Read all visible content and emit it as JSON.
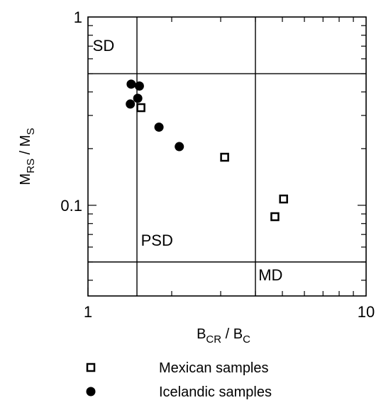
{
  "chart_data": {
    "type": "scatter",
    "x_scale": "log",
    "y_scale": "log",
    "xlim": [
      1,
      10
    ],
    "ylim": [
      0.033,
      1
    ],
    "x_ticks": [
      {
        "value": 1,
        "label": "1"
      },
      {
        "value": 10,
        "label": "10"
      }
    ],
    "y_ticks": [
      {
        "value": 0.1,
        "label": "0.1"
      },
      {
        "value": 1,
        "label": "1"
      }
    ],
    "xlabel": {
      "main": "B",
      "sub1": "CR",
      "mid": " / B",
      "sub2": "C"
    },
    "ylabel": {
      "main": "M",
      "sub1": "RS",
      "mid": " / M",
      "sub2": "S"
    },
    "grid": false,
    "region_lines": {
      "vertical": [
        1.5,
        4.0
      ],
      "horizontal": [
        0.5,
        0.05
      ]
    },
    "region_labels": [
      {
        "text": "SD",
        "x": 1.04,
        "y": 0.66
      },
      {
        "text": "PSD",
        "x": 1.55,
        "y": 0.061
      },
      {
        "text": "MD",
        "x": 4.1,
        "y": 0.04
      }
    ],
    "series": [
      {
        "name": "Mexican samples",
        "marker": "open-square",
        "points": [
          {
            "x": 1.55,
            "y": 0.33
          },
          {
            "x": 3.1,
            "y": 0.18
          },
          {
            "x": 4.7,
            "y": 0.087
          },
          {
            "x": 5.05,
            "y": 0.108
          }
        ]
      },
      {
        "name": "Icelandic samples",
        "marker": "filled-circle",
        "points": [
          {
            "x": 1.43,
            "y": 0.44
          },
          {
            "x": 1.53,
            "y": 0.43
          },
          {
            "x": 1.51,
            "y": 0.37
          },
          {
            "x": 1.42,
            "y": 0.345
          },
          {
            "x": 1.8,
            "y": 0.26
          },
          {
            "x": 2.13,
            "y": 0.205
          }
        ]
      }
    ],
    "legend_position": "below-left"
  }
}
